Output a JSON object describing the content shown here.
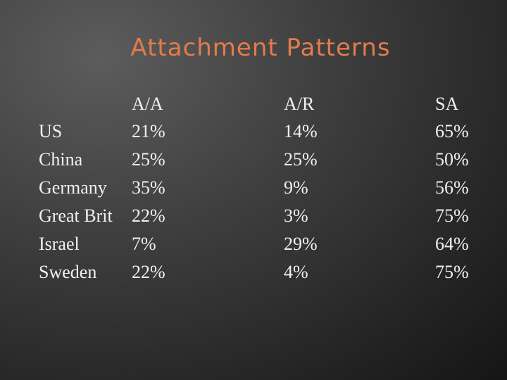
{
  "title": "Attachment Patterns",
  "table": {
    "columns": [
      "A/A",
      "A/R",
      "SA"
    ],
    "rows": [
      [
        "US",
        "21%",
        "14%",
        "65%"
      ],
      [
        "China",
        "25%",
        "25%",
        "50%"
      ],
      [
        "Germany",
        "35%",
        "9%",
        "56%"
      ],
      [
        "Great Brit",
        "22%",
        "3%",
        "75%"
      ],
      [
        "Israel",
        "7%",
        "29%",
        "64%"
      ],
      [
        "Sweden",
        "22%",
        "4%",
        "75%"
      ]
    ]
  }
}
